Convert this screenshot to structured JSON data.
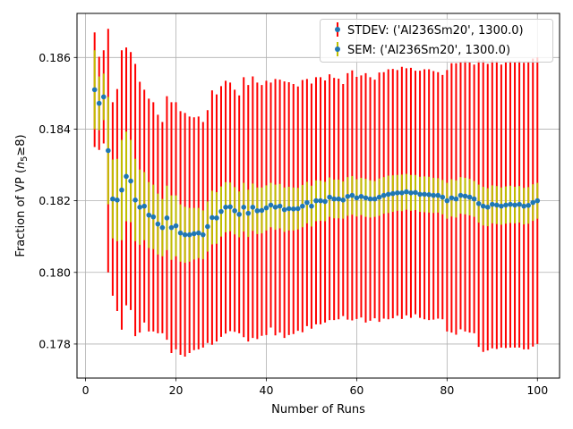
{
  "chart_data": {
    "type": "scatter",
    "title": "",
    "xlabel": "Number of Runs",
    "ylabel_prefix": "Fraction of VP (",
    "ylabel_math_var": "n",
    "ylabel_math_sub": "5",
    "ylabel_math_rest": "≥8)",
    "xlim": [
      -1.9,
      104.9
    ],
    "ylim": [
      0.17705,
      0.18723
    ],
    "xticks": [
      0,
      20,
      40,
      60,
      80,
      100
    ],
    "yticks": [
      0.178,
      0.18,
      0.182,
      0.184,
      0.186
    ],
    "xtick_labels": [
      "0",
      "20",
      "40",
      "60",
      "80",
      "100"
    ],
    "ytick_labels": [
      "0.178",
      "0.180",
      "0.182",
      "0.184",
      "0.186"
    ],
    "grid": true,
    "legend_position": "top-right",
    "colors": {
      "stdev": "#ff0000",
      "sem": "#bfbf00",
      "marker": "#1f77b4"
    },
    "series": [
      {
        "name": "STDEV: ('Al236Sm20', 1300.0)",
        "kind": "errorbar_stdev"
      },
      {
        "name": "SEM: ('Al236Sm20', 1300.0)",
        "kind": "errorbar_sem"
      }
    ],
    "x": [
      2,
      3,
      4,
      5,
      6,
      7,
      8,
      9,
      10,
      11,
      12,
      13,
      14,
      15,
      16,
      17,
      18,
      19,
      20,
      21,
      22,
      23,
      24,
      25,
      26,
      27,
      28,
      29,
      30,
      31,
      32,
      33,
      34,
      35,
      36,
      37,
      38,
      39,
      40,
      41,
      42,
      43,
      44,
      45,
      46,
      47,
      48,
      49,
      50,
      51,
      52,
      53,
      54,
      55,
      56,
      57,
      58,
      59,
      60,
      61,
      62,
      63,
      64,
      65,
      66,
      67,
      68,
      69,
      70,
      71,
      72,
      73,
      74,
      75,
      76,
      77,
      78,
      79,
      80,
      81,
      82,
      83,
      84,
      85,
      86,
      87,
      88,
      89,
      90,
      91,
      92,
      93,
      94,
      95,
      96,
      97,
      98,
      99,
      100
    ],
    "y": [
      0.1851,
      0.18472,
      0.1849,
      0.1834,
      0.18205,
      0.18202,
      0.1823,
      0.18268,
      0.18255,
      0.18202,
      0.18182,
      0.18185,
      0.1816,
      0.18155,
      0.18135,
      0.18125,
      0.18152,
      0.18125,
      0.1813,
      0.1811,
      0.18105,
      0.18105,
      0.18108,
      0.1811,
      0.18105,
      0.18128,
      0.18153,
      0.18152,
      0.1817,
      0.18182,
      0.18183,
      0.18172,
      0.18162,
      0.18182,
      0.18165,
      0.18182,
      0.18172,
      0.18173,
      0.1818,
      0.18188,
      0.18182,
      0.18185,
      0.18175,
      0.18178,
      0.18177,
      0.18178,
      0.18185,
      0.18195,
      0.18185,
      0.182,
      0.182,
      0.18198,
      0.1821,
      0.18205,
      0.18205,
      0.18202,
      0.18212,
      0.18215,
      0.18208,
      0.18212,
      0.18208,
      0.18205,
      0.18205,
      0.1821,
      0.18215,
      0.18218,
      0.1822,
      0.18222,
      0.18222,
      0.18225,
      0.18222,
      0.18223,
      0.18218,
      0.18218,
      0.18217,
      0.18215,
      0.18215,
      0.1821,
      0.182,
      0.18208,
      0.18205,
      0.18215,
      0.18213,
      0.1821,
      0.18205,
      0.18192,
      0.18185,
      0.18182,
      0.1819,
      0.18188,
      0.18185,
      0.18188,
      0.1819,
      0.18188,
      0.1819,
      0.18185,
      0.18187,
      0.18195,
      0.182
    ],
    "stdev": [
      0.0016,
      0.0013,
      0.0013,
      0.0034,
      0.0027,
      0.0031,
      0.0039,
      0.0036,
      0.0036,
      0.0038,
      0.0035,
      0.00325,
      0.00325,
      0.0032,
      0.00305,
      0.00295,
      0.0034,
      0.0035,
      0.00345,
      0.0034,
      0.0034,
      0.0033,
      0.00325,
      0.00325,
      0.00315,
      0.00325,
      0.00355,
      0.00345,
      0.0035,
      0.00353,
      0.00347,
      0.00338,
      0.00332,
      0.00363,
      0.00358,
      0.00365,
      0.00358,
      0.0035,
      0.00355,
      0.00342,
      0.00358,
      0.00353,
      0.00358,
      0.00353,
      0.00349,
      0.00341,
      0.00352,
      0.00345,
      0.00342,
      0.00345,
      0.00345,
      0.00338,
      0.00343,
      0.00338,
      0.00336,
      0.00324,
      0.00344,
      0.00349,
      0.00338,
      0.00338,
      0.00348,
      0.0034,
      0.00333,
      0.00348,
      0.00344,
      0.00349,
      0.00348,
      0.00343,
      0.00352,
      0.00345,
      0.00349,
      0.0034,
      0.00345,
      0.00349,
      0.0035,
      0.00347,
      0.00344,
      0.00341,
      0.00365,
      0.00376,
      0.00379,
      0.00374,
      0.00378,
      0.00378,
      0.00375,
      0.004,
      0.00407,
      0.004,
      0.00402,
      0.00402,
      0.00395,
      0.00399,
      0.004,
      0.00398,
      0.004,
      0.004,
      0.00402,
      0.00402,
      0.004
    ],
    "sem": [
      0.0011,
      0.00075,
      0.00065,
      0.0015,
      0.0011,
      0.00115,
      0.0014,
      0.00125,
      0.00115,
      0.00115,
      0.00105,
      0.00095,
      0.00092,
      0.0009,
      0.00085,
      0.0008,
      0.0009,
      0.0009,
      0.00085,
      0.0008,
      0.00078,
      0.00075,
      0.00072,
      0.0007,
      0.00068,
      0.0007,
      0.00075,
      0.00072,
      0.0007,
      0.0007,
      0.00068,
      0.00066,
      0.00064,
      0.00068,
      0.00066,
      0.00066,
      0.00065,
      0.00064,
      0.00063,
      0.00062,
      0.00063,
      0.00062,
      0.00062,
      0.00061,
      0.0006,
      0.00058,
      0.00059,
      0.00058,
      0.00057,
      0.00057,
      0.00056,
      0.00055,
      0.00055,
      0.00054,
      0.00054,
      0.00052,
      0.00054,
      0.00054,
      0.00052,
      0.00052,
      0.00053,
      0.00052,
      0.0005,
      0.00052,
      0.00051,
      0.00052,
      0.00051,
      0.0005,
      0.00051,
      0.0005,
      0.0005,
      0.00049,
      0.00049,
      0.0005,
      0.0005,
      0.00049,
      0.00048,
      0.00048,
      0.0005,
      0.00052,
      0.00052,
      0.00051,
      0.00051,
      0.00051,
      0.0005,
      0.00053,
      0.00054,
      0.00053,
      0.00053,
      0.00053,
      0.00052,
      0.00052,
      0.00052,
      0.00051,
      0.00051,
      0.00051,
      0.00051,
      0.00051,
      0.0005
    ]
  }
}
